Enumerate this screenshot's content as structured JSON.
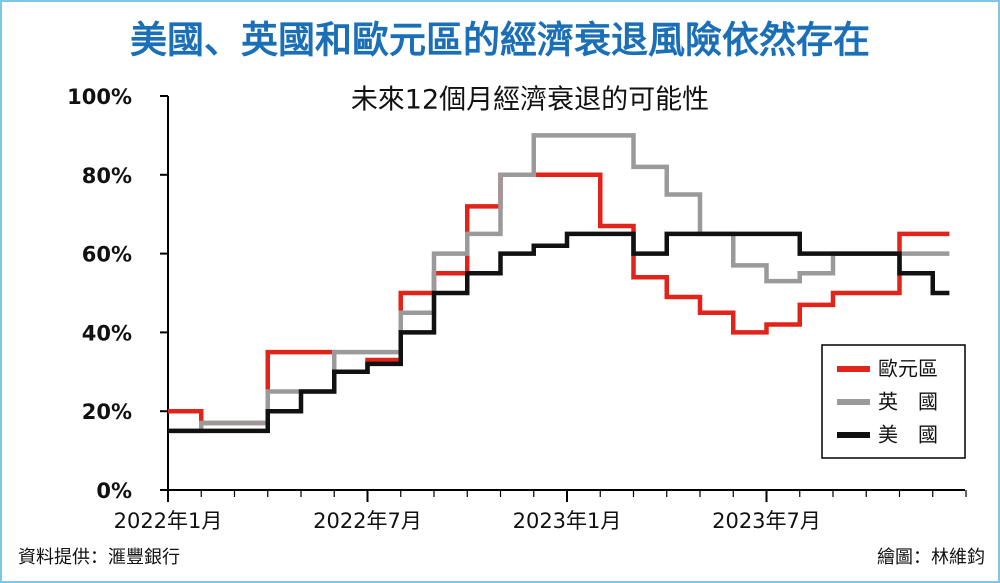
{
  "chart_data": {
    "type": "line",
    "step": true,
    "title": "美國、英國和歐元區的經濟衰退風險依然存在",
    "subtitle": "未來12個月經濟衰退的可能性",
    "source": "資料提供：滙豐銀行",
    "credit": "繪圖：林維鈞",
    "categories": [
      "2022年1月",
      null,
      null,
      null,
      null,
      null,
      "2022年7月",
      null,
      null,
      null,
      null,
      null,
      "2023年1月",
      null,
      null,
      null,
      null,
      null,
      "2023年7月",
      null,
      null,
      null,
      null,
      null
    ],
    "series": [
      {
        "name": "歐元區",
        "color": "#e2231a",
        "values": [
          20,
          17,
          17,
          35,
          35,
          30,
          33,
          50,
          55,
          72,
          80,
          80,
          80,
          67,
          54,
          49,
          45,
          40,
          42,
          47,
          50,
          50,
          65,
          65
        ]
      },
      {
        "name": "英　國",
        "color": "#9a9a9a",
        "values": [
          15,
          17,
          17,
          25,
          25,
          35,
          35,
          45,
          60,
          65,
          80,
          90,
          90,
          90,
          82,
          75,
          65,
          57,
          53,
          55,
          60,
          60,
          60,
          60
        ]
      },
      {
        "name": "美　國",
        "color": "#111111",
        "values": [
          15,
          15,
          15,
          20,
          25,
          30,
          32,
          40,
          50,
          55,
          60,
          62,
          65,
          65,
          60,
          65,
          65,
          65,
          65,
          60,
          60,
          60,
          55,
          50
        ]
      }
    ],
    "ylim": [
      0,
      100
    ],
    "yticks": [
      {
        "value": 0,
        "label": "0%"
      },
      {
        "value": 20,
        "label": "20%"
      },
      {
        "value": 40,
        "label": "40%"
      },
      {
        "value": 60,
        "label": "60%"
      },
      {
        "value": 80,
        "label": "80%"
      },
      {
        "value": 100,
        "label": "100%"
      }
    ],
    "legend": "lower right"
  }
}
